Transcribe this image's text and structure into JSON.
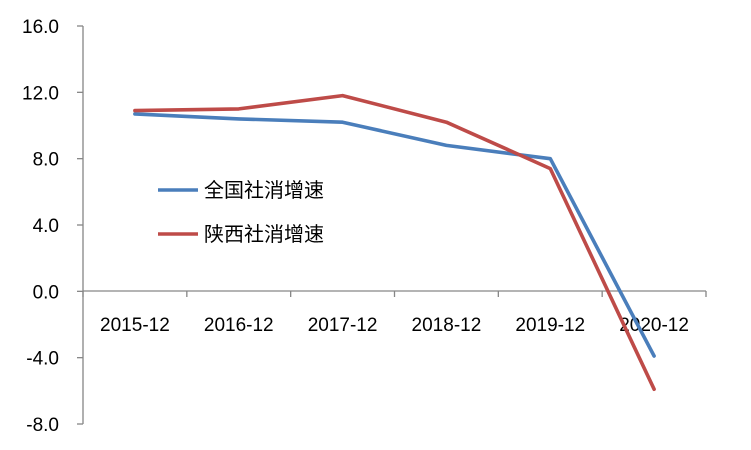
{
  "chart_data": {
    "type": "line",
    "categories": [
      "2015-12",
      "2016-12",
      "2017-12",
      "2018-12",
      "2019-12",
      "2020-12"
    ],
    "series": [
      {
        "name": "全国社消增速",
        "values": [
          10.7,
          10.4,
          10.2,
          8.8,
          8.0,
          -3.9
        ],
        "color": "#4a7ebb"
      },
      {
        "name": "陕西社消增速",
        "values": [
          10.9,
          11.0,
          11.8,
          10.2,
          7.4,
          -5.9
        ],
        "color": "#be4b48"
      }
    ],
    "yticks": [
      "16.0",
      "12.0",
      "8.0",
      "4.0",
      "0.0",
      "-4.0",
      "-8.0"
    ],
    "ylim": [
      -8,
      16
    ],
    "grid": false,
    "legend_position": "center-left",
    "title": "",
    "xlabel": "",
    "ylabel": ""
  }
}
